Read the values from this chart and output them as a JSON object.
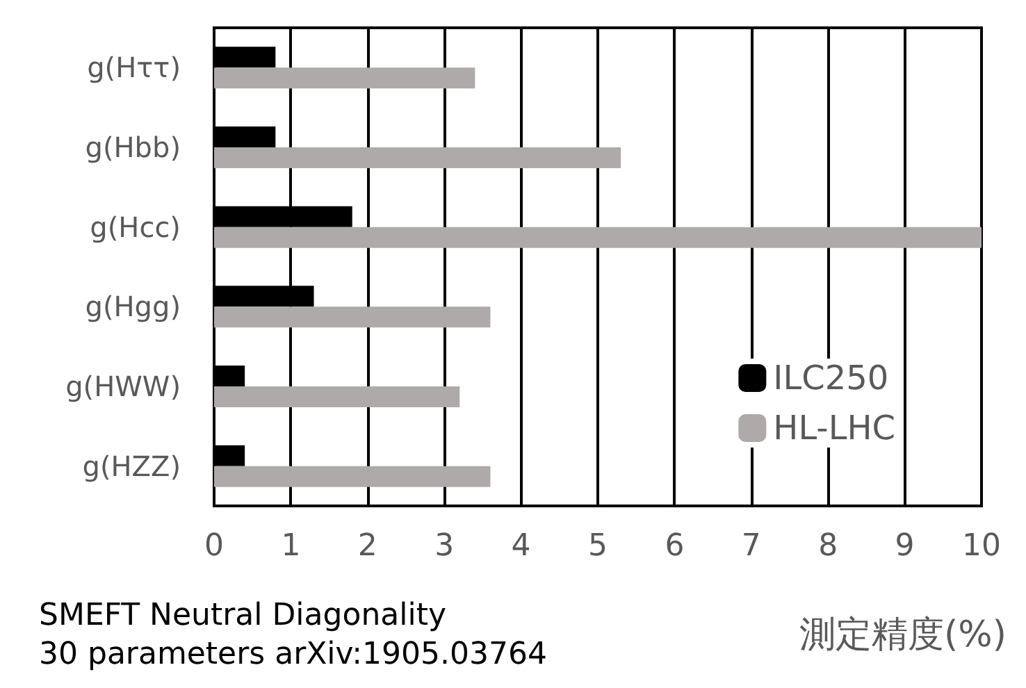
{
  "chart_data": {
    "type": "bar",
    "orientation": "horizontal",
    "xlabel": "測定精度(%)",
    "categories": [
      "g(Hττ)",
      "g(Hbb)",
      "g(Hcc)",
      "g(Hgg)",
      "g(HWW)",
      "g(HZZ)"
    ],
    "series": [
      {
        "name": "ILC250",
        "color": "#000000",
        "values": [
          0.8,
          0.8,
          1.8,
          1.3,
          0.4,
          0.4
        ]
      },
      {
        "name": "HL-LHC",
        "color": "#aeaaaa",
        "values": [
          3.4,
          5.3,
          10,
          3.6,
          3.2,
          3.6
        ]
      }
    ],
    "xlim": [
      0,
      10
    ],
    "xticks": [
      0,
      1,
      2,
      3,
      4,
      5,
      6,
      7,
      8,
      9,
      10
    ],
    "grid": "x",
    "legend": "right",
    "annotations": [
      "SMEFT Neutral Diagonality",
      "30 parameters arXiv:1905.03764"
    ]
  }
}
